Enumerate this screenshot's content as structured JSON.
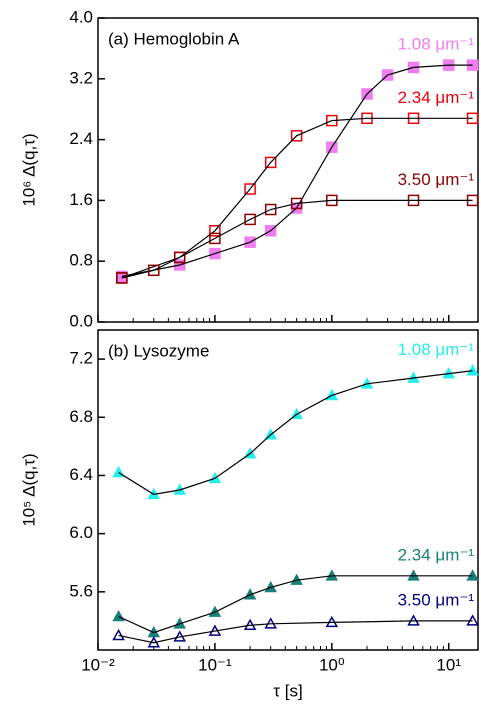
{
  "chart_data": [
    {
      "type": "scatter",
      "title": "(a) Hemoglobin A",
      "ylabel": "10⁶ Δ(q,τ)",
      "xscale": "log",
      "xlim": [
        0.01,
        17.8
      ],
      "ylim": [
        0,
        4
      ],
      "yticks": [
        {
          "value": 0,
          "label": "0.0"
        },
        0.8,
        1.6,
        2.4,
        3.2,
        {
          "value": 4,
          "label": "4.0"
        }
      ],
      "series": [
        {
          "name": "1.08 μm⁻¹",
          "color": "#f07ef0",
          "marker": "square",
          "filled": true,
          "x": [
            0.016,
            0.05,
            0.1,
            0.2,
            0.3,
            0.5,
            1,
            2,
            3,
            5,
            10,
            16
          ],
          "values": [
            0.6,
            0.75,
            0.9,
            1.05,
            1.2,
            1.5,
            2.3,
            3.0,
            3.25,
            3.35,
            3.38,
            3.38
          ]
        },
        {
          "name": "2.34 μm⁻¹",
          "color": "#e8000a",
          "marker": "square",
          "filled": false,
          "x": [
            0.016,
            0.05,
            0.1,
            0.2,
            0.3,
            0.5,
            1,
            2,
            5,
            16
          ],
          "values": [
            0.58,
            0.85,
            1.2,
            1.75,
            2.1,
            2.45,
            2.65,
            2.68,
            2.68,
            2.68
          ]
        },
        {
          "name": "3.50 μm⁻¹",
          "color": "#8b0000",
          "marker": "square",
          "filled": false,
          "x": [
            0.016,
            0.03,
            0.05,
            0.1,
            0.2,
            0.3,
            0.5,
            1,
            5,
            16
          ],
          "values": [
            0.58,
            0.68,
            0.85,
            1.1,
            1.35,
            1.48,
            1.56,
            1.6,
            1.6,
            1.6
          ]
        }
      ]
    },
    {
      "type": "scatter",
      "title": "(b) Lysozyme",
      "ylabel": "10⁵ Δ(q,τ)",
      "xlabel": "τ [s]",
      "xscale": "log",
      "xlim": [
        0.01,
        17.8
      ],
      "ylim": [
        5.2,
        7.4
      ],
      "xticks": [
        {
          "value": 0.01,
          "label": "10⁻²"
        },
        {
          "value": 0.1,
          "label": "10⁻¹"
        },
        {
          "value": 1,
          "label": "10⁰"
        },
        {
          "value": 10,
          "label": "10¹"
        }
      ],
      "yticks": [
        5.6,
        {
          "value": 6,
          "label": "6.0"
        },
        6.4,
        6.8,
        7.2
      ],
      "series": [
        {
          "name": "1.08 μm⁻¹",
          "color": "#22eeee",
          "marker": "triangle",
          "filled": true,
          "x": [
            0.015,
            0.03,
            0.05,
            0.1,
            0.2,
            0.3,
            0.5,
            1,
            2,
            5,
            10,
            16
          ],
          "values": [
            6.42,
            6.27,
            6.3,
            6.38,
            6.55,
            6.68,
            6.82,
            6.95,
            7.03,
            7.07,
            7.1,
            7.12
          ]
        },
        {
          "name": "2.34 μm⁻¹",
          "color": "#1a7f7a",
          "marker": "triangle",
          "filled": true,
          "x": [
            0.015,
            0.03,
            0.05,
            0.1,
            0.2,
            0.3,
            0.5,
            1,
            5,
            16
          ],
          "values": [
            5.43,
            5.32,
            5.38,
            5.46,
            5.58,
            5.63,
            5.68,
            5.71,
            5.71,
            5.71
          ]
        },
        {
          "name": "3.50 μm⁻¹",
          "color": "#00007f",
          "marker": "triangle",
          "filled": false,
          "x": [
            0.015,
            0.03,
            0.05,
            0.1,
            0.2,
            0.3,
            1,
            5,
            16
          ],
          "values": [
            5.3,
            5.25,
            5.29,
            5.33,
            5.37,
            5.38,
            5.39,
            5.4,
            5.4
          ]
        }
      ]
    }
  ]
}
